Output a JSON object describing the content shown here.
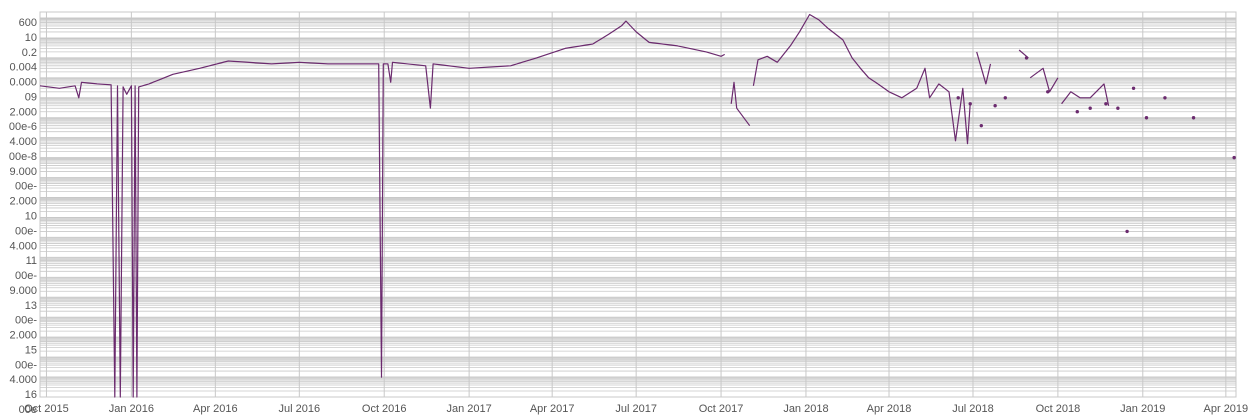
{
  "chart_data": {
    "type": "line",
    "title": "",
    "xlabel": "",
    "ylabel": "",
    "y_scale": "log",
    "grid": true,
    "legend": "none",
    "colors": {
      "line": "#6b2a6e",
      "grid": "#c8c8c8",
      "background": "#ffffff"
    },
    "x_range": [
      "2015-09-24",
      "2019-04-12"
    ],
    "y_range": [
      1e-16,
      2000
    ],
    "y_tick_labels": [
      "600",
      "10",
      "0.2",
      "0.004",
      "0.000",
      "09",
      "2.000",
      "00e-6",
      "4.000",
      "00e-8",
      "9.000",
      "00e-",
      "2.000",
      "10",
      "00e-",
      "4.000",
      "11",
      "00e-",
      "9.000",
      "13",
      "00e-",
      "2.000",
      "15",
      "00e-",
      "4.000",
      "16",
      "00e"
    ],
    "x_ticks": [
      {
        "date": "2015-10-01",
        "label": "Oct 2015"
      },
      {
        "date": "2016-01-01",
        "label": "Jan 2016"
      },
      {
        "date": "2016-04-01",
        "label": "Apr 2016"
      },
      {
        "date": "2016-07-01",
        "label": "Jul 2016"
      },
      {
        "date": "2016-10-01",
        "label": "Oct 2016"
      },
      {
        "date": "2017-01-01",
        "label": "Jan 2017"
      },
      {
        "date": "2017-04-01",
        "label": "Apr 2017"
      },
      {
        "date": "2017-07-01",
        "label": "Jul 2017"
      },
      {
        "date": "2017-10-01",
        "label": "Oct 2017"
      },
      {
        "date": "2018-01-01",
        "label": "Jan 2018"
      },
      {
        "date": "2018-04-01",
        "label": "Apr 2018"
      },
      {
        "date": "2018-07-01",
        "label": "Jul 2018"
      },
      {
        "date": "2018-10-01",
        "label": "Oct 2018"
      },
      {
        "date": "2019-01-01",
        "label": "Jan 2019"
      },
      {
        "date": "2019-04-01",
        "label": "Apr 2019"
      }
    ],
    "series": [
      {
        "segments": [
          [
            [
              "2015-09-24",
              0.4
            ],
            [
              "2015-10-15",
              0.3
            ],
            [
              "2015-11-01",
              0.4
            ],
            [
              "2015-11-05",
              0.1
            ],
            [
              "2015-11-08",
              0.6
            ],
            [
              "2015-11-25",
              0.5
            ],
            [
              "2015-12-10",
              0.45
            ],
            [
              "2015-12-14",
              1e-16
            ],
            [
              "2015-12-17",
              0.4
            ],
            [
              "2015-12-20",
              1e-16
            ],
            [
              "2015-12-23",
              0.35
            ],
            [
              "2015-12-27",
              0.15
            ],
            [
              "2016-01-01",
              0.4
            ],
            [
              "2016-01-03",
              1e-16
            ],
            [
              "2016-01-05",
              0.4
            ],
            [
              "2016-01-07",
              1e-16
            ],
            [
              "2016-01-09",
              0.35
            ],
            [
              "2016-01-20",
              0.5
            ],
            [
              "2016-02-15",
              1.5
            ],
            [
              "2016-03-15",
              3
            ],
            [
              "2016-04-15",
              7
            ],
            [
              "2016-06-01",
              5
            ],
            [
              "2016-07-01",
              6
            ],
            [
              "2016-08-01",
              5
            ],
            [
              "2016-09-01",
              5
            ],
            [
              "2016-09-25",
              5
            ],
            [
              "2016-09-28",
              1e-15
            ],
            [
              "2016-09-30",
              5
            ],
            [
              "2016-10-05",
              5
            ],
            [
              "2016-10-08",
              0.6
            ],
            [
              "2016-10-10",
              6
            ],
            [
              "2016-11-15",
              4
            ],
            [
              "2016-11-20",
              0.03
            ],
            [
              "2016-11-23",
              5
            ],
            [
              "2017-01-01",
              3
            ],
            [
              "2017-02-15",
              4
            ],
            [
              "2017-03-15",
              10
            ],
            [
              "2017-04-15",
              30
            ],
            [
              "2017-05-15",
              50
            ],
            [
              "2017-06-01",
              150
            ],
            [
              "2017-06-15",
              400
            ],
            [
              "2017-06-20",
              700
            ],
            [
              "2017-07-01",
              200
            ],
            [
              "2017-07-15",
              60
            ],
            [
              "2017-08-15",
              40
            ],
            [
              "2017-09-15",
              20
            ],
            [
              "2017-10-01",
              12
            ],
            [
              "2017-10-05",
              15
            ]
          ],
          [
            [
              "2017-10-12",
              0.05
            ],
            [
              "2017-10-15",
              0.6
            ],
            [
              "2017-10-18",
              0.03
            ],
            [
              "2017-11-01",
              0.004
            ]
          ],
          [
            [
              "2017-11-05",
              0.4
            ],
            [
              "2017-11-10",
              8
            ],
            [
              "2017-11-20",
              12
            ],
            [
              "2017-12-01",
              6
            ],
            [
              "2017-12-15",
              40
            ],
            [
              "2017-12-25",
              200
            ],
            [
              "2018-01-05",
              1500
            ],
            [
              "2018-01-15",
              800
            ],
            [
              "2018-01-25",
              300
            ],
            [
              "2018-02-10",
              80
            ],
            [
              "2018-02-20",
              10
            ],
            [
              "2018-03-01",
              3
            ],
            [
              "2018-03-10",
              1
            ],
            [
              "2018-03-20",
              0.5
            ],
            [
              "2018-04-01",
              0.2
            ],
            [
              "2018-04-15",
              0.1
            ],
            [
              "2018-05-01",
              0.3
            ],
            [
              "2018-05-10",
              3
            ],
            [
              "2018-05-15",
              0.1
            ],
            [
              "2018-05-25",
              0.5
            ],
            [
              "2018-06-05",
              0.2
            ],
            [
              "2018-06-12",
              0.0007
            ],
            [
              "2018-06-20",
              0.3
            ],
            [
              "2018-06-25",
              0.0005
            ],
            [
              "2018-06-28",
              0.05
            ]
          ],
          [
            [
              "2018-07-05",
              20
            ],
            [
              "2018-07-15",
              0.5
            ],
            [
              "2018-07-20",
              5
            ]
          ],
          [
            [
              "2018-08-20",
              25
            ],
            [
              "2018-08-30",
              10
            ]
          ],
          [
            [
              "2018-09-01",
              1
            ],
            [
              "2018-09-15",
              3
            ],
            [
              "2018-09-22",
              0.2
            ],
            [
              "2018-10-01",
              1
            ]
          ],
          [
            [
              "2018-10-05",
              0.05
            ],
            [
              "2018-10-15",
              0.2
            ],
            [
              "2018-10-25",
              0.1
            ],
            [
              "2018-11-05",
              0.1
            ],
            [
              "2018-11-20",
              0.5
            ],
            [
              "2018-11-25",
              0.04
            ]
          ]
        ],
        "points": [
          [
            "2018-06-15",
            0.1
          ],
          [
            "2018-06-28",
            0.05
          ],
          [
            "2018-07-10",
            0.004
          ],
          [
            "2018-07-25",
            0.04
          ],
          [
            "2018-08-05",
            0.1
          ],
          [
            "2018-08-28",
            10
          ],
          [
            "2018-09-20",
            0.2
          ],
          [
            "2018-10-22",
            0.02
          ],
          [
            "2018-11-05",
            0.03
          ],
          [
            "2018-11-22",
            0.05
          ],
          [
            "2018-12-05",
            0.03
          ],
          [
            "2018-12-15",
            2e-08
          ],
          [
            "2018-12-22",
            0.3
          ],
          [
            "2019-01-05",
            0.01
          ],
          [
            "2019-01-25",
            0.1
          ],
          [
            "2019-02-25",
            0.01
          ],
          [
            "2019-04-10",
            0.0001
          ]
        ]
      }
    ]
  }
}
